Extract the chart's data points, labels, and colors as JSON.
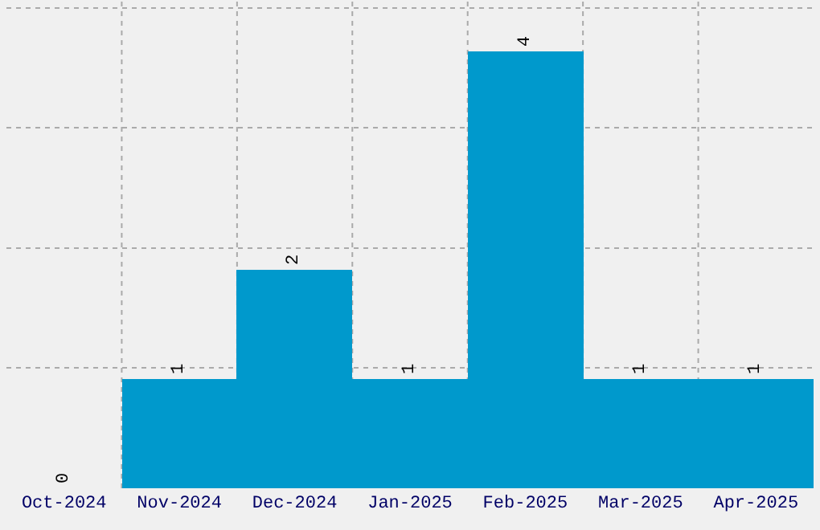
{
  "chart_data": {
    "type": "bar",
    "categories": [
      "Oct-2024",
      "Nov-2024",
      "Dec-2024",
      "Jan-2025",
      "Feb-2025",
      "Mar-2025",
      "Apr-2025"
    ],
    "values": [
      0,
      1,
      2,
      1,
      4,
      1,
      1
    ],
    "color": "#0099cc",
    "data_labels": true,
    "ylim": [
      0,
      4.47
    ],
    "yticks": [
      {
        "value": 1.1,
        "label": null
      },
      {
        "value": 2.2,
        "label": null
      },
      {
        "value": 3.3,
        "label": null
      },
      {
        "value": 4.4,
        "label": null
      }
    ],
    "tick_labels": "x",
    "grid": true
  }
}
